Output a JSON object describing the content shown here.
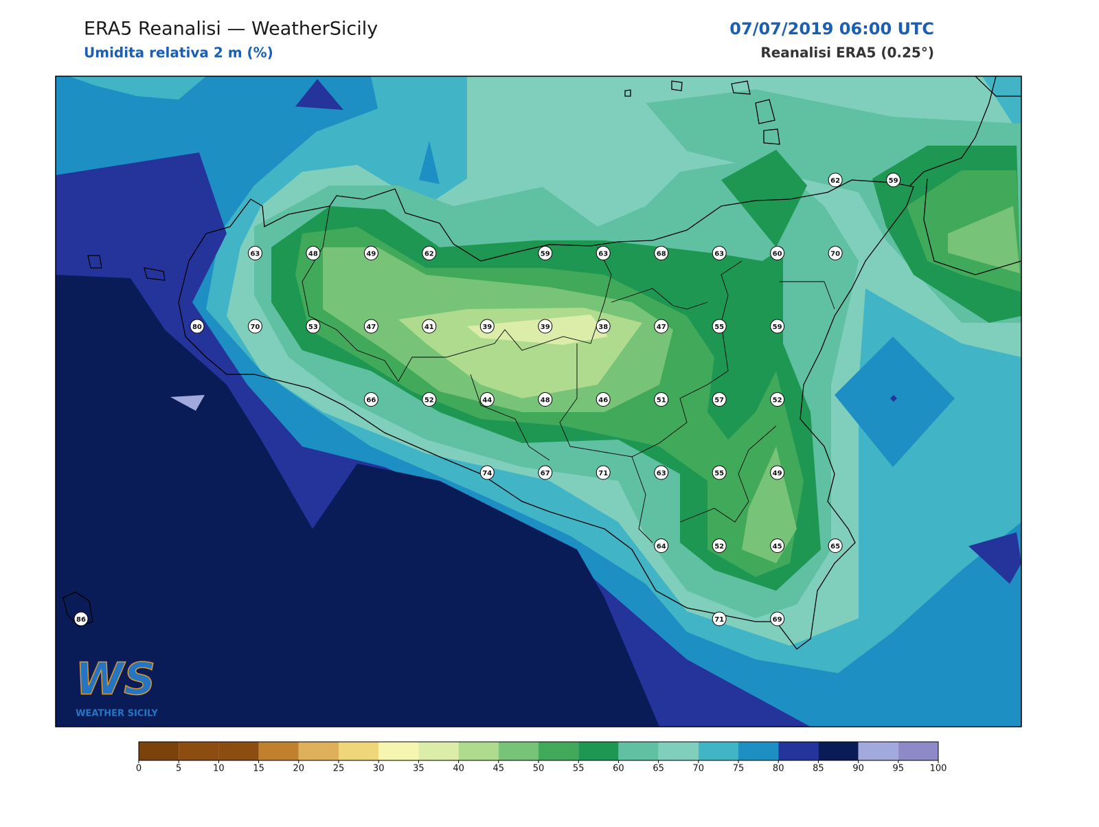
{
  "header": {
    "title": "ERA5 Reanalisi — WeatherSicily",
    "subtitle": "Umidita relativa 2 m (%)",
    "datetime": "07/07/2019 06:00 UTC",
    "source": "Reanalisi ERA5 (0.25°)"
  },
  "stations": [
    [
      null,
      null,
      null,
      null,
      null,
      null,
      null,
      null,
      null,
      null,
      null,
      null,
      null,
      62,
      59
    ],
    [
      null,
      null,
      null,
      63,
      48,
      49,
      62,
      null,
      59,
      63,
      68,
      63,
      60,
      70,
      null
    ],
    [
      null,
      null,
      80,
      70,
      53,
      47,
      41,
      39,
      39,
      38,
      47,
      55,
      59,
      null,
      null
    ],
    [
      null,
      null,
      null,
      null,
      null,
      66,
      52,
      44,
      48,
      46,
      51,
      57,
      52,
      null,
      null
    ],
    [
      null,
      null,
      null,
      null,
      null,
      null,
      null,
      74,
      67,
      71,
      63,
      55,
      49,
      null,
      null
    ],
    [
      null,
      null,
      null,
      null,
      null,
      null,
      null,
      null,
      null,
      null,
      64,
      52,
      45,
      65,
      null
    ],
    [
      86,
      null,
      null,
      null,
      null,
      null,
      null,
      null,
      null,
      null,
      null,
      71,
      69,
      null,
      null
    ]
  ],
  "colorbar": {
    "ticks": [
      0,
      5,
      10,
      15,
      20,
      25,
      30,
      35,
      40,
      45,
      50,
      55,
      60,
      65,
      70,
      75,
      80,
      85,
      90,
      95,
      100
    ],
    "colors": [
      "#7b420b",
      "#8d4c10",
      "#8d4c10",
      "#c0802e",
      "#dfb05b",
      "#f0d67a",
      "#f6f6b0",
      "#dcedaa",
      "#aedb8e",
      "#77c377",
      "#41a95a",
      "#1d9752",
      "#5fc0a2",
      "#80cfbd",
      "#41b4c6",
      "#1e8fc2",
      "#24349a",
      "#0a1c57",
      "#a2a9dc",
      "#8d8ac7"
    ]
  },
  "logo": {
    "mark": "WS",
    "name": "WEATHER SICILY"
  }
}
